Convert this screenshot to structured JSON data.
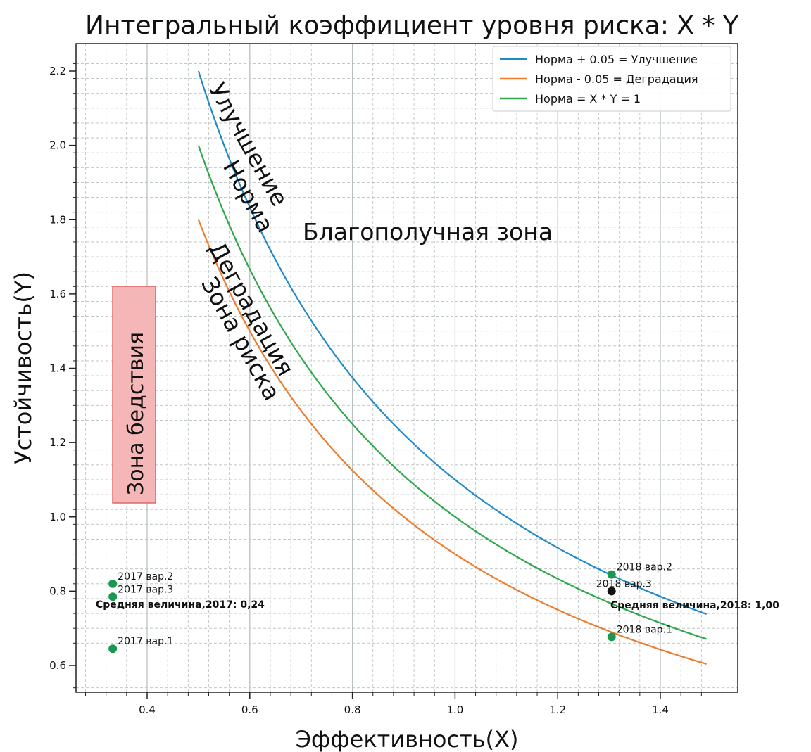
{
  "chart_data": {
    "type": "line",
    "title": "Интегральный коэффициент уровня риска: X * Y",
    "xlabel": "Эффективность(X)",
    "ylabel": "Устойчивость(Y)",
    "xlim": [
      0.27,
      1.55
    ],
    "ylim": [
      0.52,
      2.26
    ],
    "grid": true,
    "legend_position": "top-right",
    "x_ticks": [
      0.4,
      0.6,
      0.8,
      1.0,
      1.2,
      1.4
    ],
    "y_ticks": [
      0.6,
      0.8,
      1.0,
      1.2,
      1.4,
      1.6,
      1.8,
      2.0,
      2.2
    ],
    "series": [
      {
        "name": "Норма + 0.05 = Улучшение",
        "color": "#1f8ac9",
        "formula": "y = 1.1 / x",
        "x_range": [
          0.5,
          1.49
        ]
      },
      {
        "name": "Норма - 0.05 = Деградация",
        "color": "#f07a2b",
        "formula": "y = 0.9 / x",
        "x_range": [
          0.5,
          1.49
        ]
      },
      {
        "name": "Норма = X * Y = 1",
        "color": "#2ca84a",
        "formula": "y = 1 / x",
        "x_range": [
          0.5,
          1.49
        ]
      }
    ],
    "points": [
      {
        "label": "2017 вар.2",
        "x": 0.333,
        "y": 0.82,
        "color": "#1a9850"
      },
      {
        "label": "2017 вар.3",
        "x": 0.333,
        "y": 0.785,
        "color": "#1a9850"
      },
      {
        "label": "2017 вар.1",
        "x": 0.333,
        "y": 0.645,
        "color": "#1a9850"
      },
      {
        "label": "2018 вар.2",
        "x": 1.305,
        "y": 0.845,
        "color": "#1a9850"
      },
      {
        "label": "2018 вар.3",
        "x": 1.305,
        "y": 0.8,
        "color": "#111111"
      },
      {
        "label": "2018 вар.1",
        "x": 1.305,
        "y": 0.677,
        "color": "#1a9850"
      }
    ],
    "annotations": {
      "avg_2017": "Средняя величина,2017: 0,24",
      "avg_2018": "Средняя величина,2018: 1,00",
      "zone_good": "Благополучная зона",
      "zone_improve": "Улучшение",
      "zone_norm": "Норма",
      "zone_degrade": "Деградация",
      "zone_risk": "Зона риска",
      "zone_disaster": "Зона бедствия"
    },
    "colors": {
      "disaster_box_fill": "#f4b6b6",
      "disaster_box_edge": "#e06666",
      "grid": "#b8c0c0"
    }
  }
}
